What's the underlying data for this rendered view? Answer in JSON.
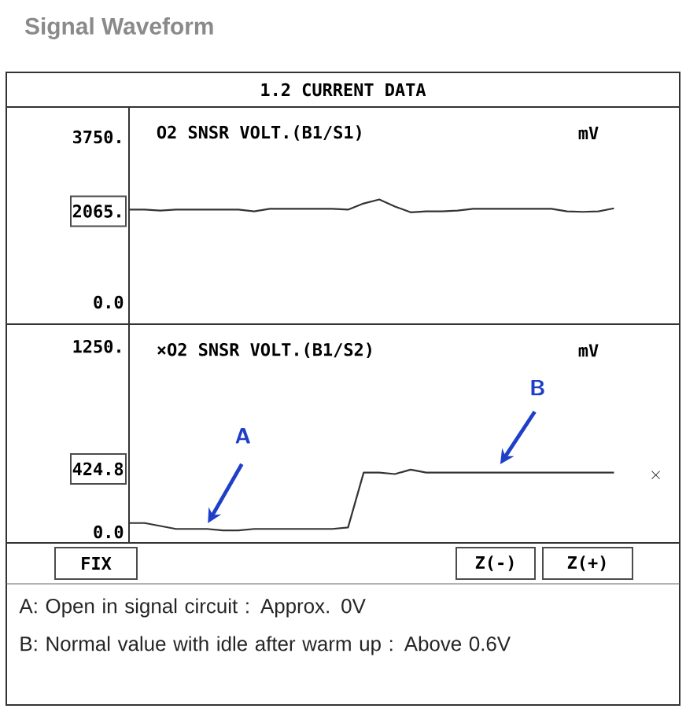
{
  "chart_data": [
    {
      "type": "line",
      "title": "Signal Waveform",
      "subtitle": "1.2 CURRENT DATA",
      "ylabel": "mV",
      "tick_labels": "y",
      "categories": [
        null,
        null,
        null,
        null,
        null,
        null,
        null,
        null,
        null,
        null,
        null,
        null,
        null,
        null,
        null,
        null,
        null,
        null,
        null,
        null,
        null,
        null,
        null,
        null,
        null,
        null,
        null,
        null,
        null,
        null,
        null,
        null,
        null,
        null,
        null,
        null
      ],
      "ylim": [
        -500,
        4430
      ],
      "yticks": [
        {
          "value": 0,
          "label": "0.0"
        },
        {
          "value": 2065,
          "label": "2065."
        },
        {
          "value": 3750,
          "label": "3750."
        }
      ],
      "series": [
        {
          "name": "O2 SNSR VOLT.(B1/S1)",
          "color": "#333333",
          "values": [
            2100,
            2100,
            2080,
            2100,
            2100,
            2100,
            2100,
            2100,
            2060,
            2120,
            2120,
            2120,
            2120,
            2120,
            2100,
            2240,
            2330,
            2170,
            2040,
            2060,
            2060,
            2080,
            2120,
            2120,
            2120,
            2120,
            2120,
            2120,
            2060,
            2050,
            2060,
            2130,
            null,
            null,
            null,
            null
          ]
        }
      ]
    },
    {
      "type": "line",
      "ylabel": "mV",
      "tick_labels": "y",
      "categories": [
        null,
        null,
        null,
        null,
        null,
        null,
        null,
        null,
        null,
        null,
        null,
        null,
        null,
        null,
        null,
        null,
        null,
        null,
        null,
        null,
        null,
        null,
        null,
        null,
        null,
        null,
        null,
        null,
        null,
        null,
        null,
        null,
        null,
        null,
        null,
        null
      ],
      "ylim": [
        -74,
        1400
      ],
      "yticks": [
        {
          "value": 0,
          "label": "0.0"
        },
        {
          "value": 424.8,
          "label": "424.8"
        },
        {
          "value": 1250,
          "label": "1250."
        }
      ],
      "series": [
        {
          "name": "×O2 SNSR VOLT.(B1/S2)",
          "color": "#333333",
          "values": [
            60,
            60,
            40,
            20,
            20,
            20,
            10,
            10,
            20,
            20,
            20,
            20,
            20,
            20,
            30,
            400,
            400,
            390,
            420,
            400,
            400,
            400,
            400,
            400,
            400,
            400,
            400,
            400,
            400,
            400,
            400,
            400,
            null,
            null,
            null,
            null
          ]
        }
      ],
      "annotations": [
        "A",
        "B",
        "×",
        "FIX",
        "Z(-)",
        "Z(+)",
        "A: Open in signal circuit : Approx. 0V",
        "B: Normal value with idle after warm up : Above 0.6V"
      ]
    }
  ]
}
